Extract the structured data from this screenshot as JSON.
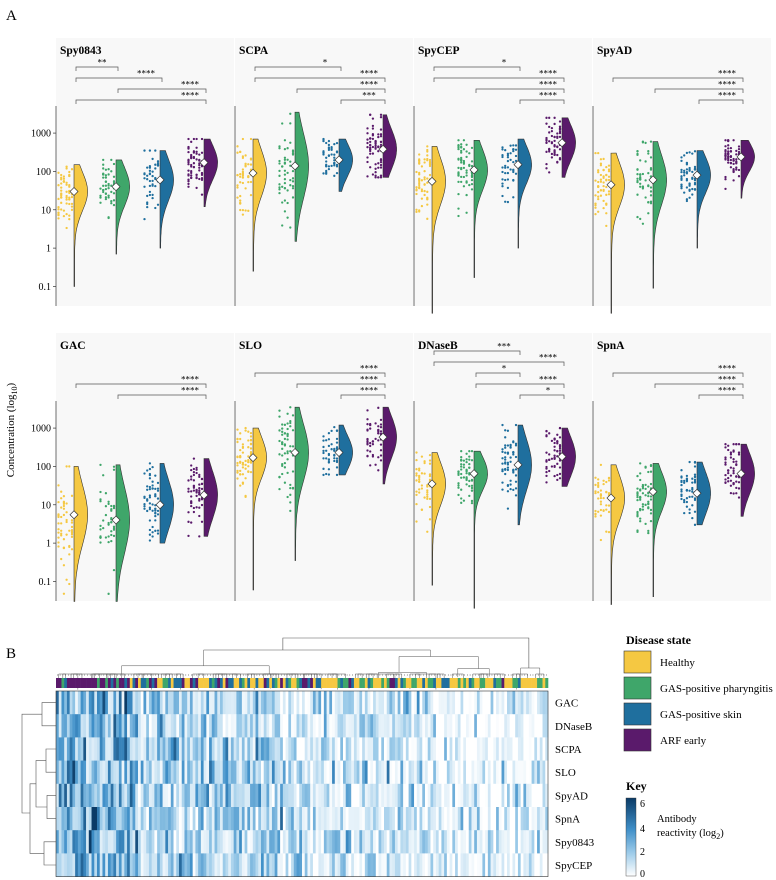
{
  "figure": {
    "panel_a": "A",
    "panel_b": "B",
    "y_axis_label": "Concentration (log",
    "y_axis_label_sub": "10",
    "y_axis_label_end": ")"
  },
  "colors": {
    "Healthy": "#f5c842",
    "GAS-positive pharyngitis": "#3fa66a",
    "GAS-positive skin": "#1f6f9e",
    "ARF early": "#5a1a6b",
    "background": "#f8f8f8"
  },
  "chart_data": [
    {
      "type": "violin",
      "title": "Spy0843",
      "groups": [
        "Healthy",
        "GAS-positive pharyngitis",
        "GAS-positive skin",
        "ARF early"
      ],
      "ylabel": "Concentration (log10)",
      "yscale": "log",
      "ylim": [
        0.05,
        4000
      ],
      "yticks": [
        "0.1",
        "1",
        "10",
        "100",
        "1000"
      ],
      "medians": [
        30,
        40,
        60,
        170
      ],
      "ranges": [
        [
          0.1,
          150
        ],
        [
          0.7,
          200
        ],
        [
          1,
          350
        ],
        [
          12,
          700
        ]
      ],
      "significance": [
        {
          "from": 0,
          "to": 3,
          "label": "****"
        },
        {
          "from": 1,
          "to": 3,
          "label": "****"
        },
        {
          "from": 0,
          "to": 2,
          "label": "****"
        },
        {
          "from": 0,
          "to": 1,
          "label": "**"
        }
      ]
    },
    {
      "type": "violin",
      "title": "SCPA",
      "groups": [
        "Healthy",
        "GAS-positive pharyngitis",
        "GAS-positive skin",
        "ARF early"
      ],
      "yscale": "log",
      "ylim": [
        0.05,
        4000
      ],
      "medians": [
        90,
        140,
        200,
        380
      ],
      "ranges": [
        [
          0.25,
          700
        ],
        [
          1.5,
          3500
        ],
        [
          30,
          700
        ],
        [
          70,
          3000
        ]
      ],
      "significance": [
        {
          "from": 2,
          "to": 3,
          "label": "***"
        },
        {
          "from": 1,
          "to": 3,
          "label": "****"
        },
        {
          "from": 0,
          "to": 3,
          "label": "****"
        },
        {
          "from": 0,
          "to": 2,
          "label": "*"
        }
      ]
    },
    {
      "type": "violin",
      "title": "SpyCEP",
      "groups": [
        "Healthy",
        "GAS-positive pharyngitis",
        "GAS-positive skin",
        "ARF early"
      ],
      "yscale": "log",
      "ylim": [
        0.05,
        4000
      ],
      "medians": [
        55,
        110,
        150,
        560
      ],
      "ranges": [
        [
          0.02,
          450
        ],
        [
          0.17,
          650
        ],
        [
          1,
          700
        ],
        [
          70,
          2500
        ]
      ],
      "significance": [
        {
          "from": 2,
          "to": 3,
          "label": "****"
        },
        {
          "from": 1,
          "to": 3,
          "label": "****"
        },
        {
          "from": 0,
          "to": 3,
          "label": "****"
        },
        {
          "from": 0,
          "to": 2,
          "label": "*"
        }
      ]
    },
    {
      "type": "violin",
      "title": "SpyAD",
      "groups": [
        "Healthy",
        "GAS-positive pharyngitis",
        "GAS-positive skin",
        "ARF early"
      ],
      "yscale": "log",
      "ylim": [
        0.05,
        4000
      ],
      "medians": [
        45,
        60,
        80,
        240
      ],
      "ranges": [
        [
          0.02,
          300
        ],
        [
          0.09,
          600
        ],
        [
          1,
          350
        ],
        [
          20,
          650
        ]
      ],
      "significance": [
        {
          "from": 2,
          "to": 3,
          "label": "****"
        },
        {
          "from": 1,
          "to": 3,
          "label": "****"
        },
        {
          "from": 0,
          "to": 3,
          "label": "****"
        }
      ]
    },
    {
      "type": "violin",
      "title": "GAC",
      "groups": [
        "Healthy",
        "GAS-positive pharyngitis",
        "GAS-positive skin",
        "ARF early"
      ],
      "yscale": "log",
      "ylim": [
        0.05,
        4000
      ],
      "medians": [
        5.5,
        4,
        10,
        18
      ],
      "ranges": [
        [
          0.03,
          100
        ],
        [
          0.03,
          110
        ],
        [
          1,
          120
        ],
        [
          1.5,
          160
        ]
      ],
      "significance": [
        {
          "from": 1,
          "to": 3,
          "label": "****"
        },
        {
          "from": 0,
          "to": 3,
          "label": "****"
        }
      ]
    },
    {
      "type": "violin",
      "title": "SLO",
      "groups": [
        "Healthy",
        "GAS-positive pharyngitis",
        "GAS-positive skin",
        "ARF early"
      ],
      "yscale": "log",
      "ylim": [
        0.05,
        4000
      ],
      "medians": [
        170,
        230,
        230,
        580
      ],
      "ranges": [
        [
          0.06,
          1000
        ],
        [
          0.35,
          3500
        ],
        [
          60,
          1200
        ],
        [
          35,
          3500
        ]
      ],
      "significance": [
        {
          "from": 2,
          "to": 3,
          "label": "****"
        },
        {
          "from": 1,
          "to": 3,
          "label": "****"
        },
        {
          "from": 0,
          "to": 3,
          "label": "****"
        }
      ]
    },
    {
      "type": "violin",
      "title": "DNaseB",
      "groups": [
        "Healthy",
        "GAS-positive pharyngitis",
        "GAS-positive skin",
        "ARF early"
      ],
      "yscale": "log",
      "ylim": [
        0.05,
        4000
      ],
      "medians": [
        35,
        65,
        110,
        180
      ],
      "ranges": [
        [
          0.08,
          230
        ],
        [
          0.02,
          250
        ],
        [
          3,
          1200
        ],
        [
          30,
          1000
        ]
      ],
      "significance": [
        {
          "from": 2,
          "to": 3,
          "label": "*"
        },
        {
          "from": 1,
          "to": 3,
          "label": "****"
        },
        {
          "from": 1,
          "to": 2,
          "label": "*"
        },
        {
          "from": 0,
          "to": 3,
          "label": "****"
        },
        {
          "from": 0,
          "to": 2,
          "label": "***"
        }
      ]
    },
    {
      "type": "violin",
      "title": "SpnA",
      "groups": [
        "Healthy",
        "GAS-positive pharyngitis",
        "GAS-positive skin",
        "ARF early"
      ],
      "yscale": "log",
      "ylim": [
        0.05,
        4000
      ],
      "medians": [
        15,
        22,
        20,
        65
      ],
      "ranges": [
        [
          0.025,
          110
        ],
        [
          0.04,
          120
        ],
        [
          3,
          130
        ],
        [
          5,
          380
        ]
      ],
      "significance": [
        {
          "from": 2,
          "to": 3,
          "label": "****"
        },
        {
          "from": 1,
          "to": 3,
          "label": "****"
        },
        {
          "from": 0,
          "to": 3,
          "label": "****"
        }
      ]
    },
    {
      "type": "heatmap",
      "rows": [
        "GAC",
        "DNaseB",
        "SCPA",
        "SLO",
        "SpyAD",
        "SpnA",
        "Spy0843",
        "SpyCEP"
      ],
      "column_annotation": "Disease state",
      "color_key_title": "Key",
      "color_key_label": "Antibody reactivity (log",
      "color_key_label_sub": "2",
      "color_key_label_end": ")",
      "color_key_ticks": [
        "0",
        "2",
        "4",
        "6"
      ],
      "color_range": [
        0,
        6.5
      ]
    }
  ],
  "legend": {
    "title": "Disease state",
    "items": [
      {
        "label": "Healthy",
        "color": "#f5c842"
      },
      {
        "label": "GAS-positive pharyngitis",
        "color": "#3fa66a"
      },
      {
        "label": "GAS-positive skin",
        "color": "#1f6f9e"
      },
      {
        "label": "ARF early",
        "color": "#5a1a6b"
      }
    ]
  }
}
